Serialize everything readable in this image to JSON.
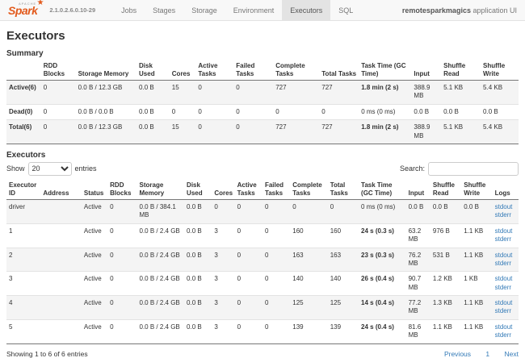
{
  "navbar": {
    "brand": "Spark",
    "brand_sub": "apache",
    "version": "2.1.0.2.6.0.10-29",
    "items": [
      {
        "label": "Jobs",
        "active": false
      },
      {
        "label": "Stages",
        "active": false
      },
      {
        "label": "Storage",
        "active": false
      },
      {
        "label": "Environment",
        "active": false
      },
      {
        "label": "Executors",
        "active": true
      },
      {
        "label": "SQL",
        "active": false
      }
    ],
    "app_name": "remotesparkmagics",
    "app_suffix": " application UI"
  },
  "page": {
    "title": "Executors"
  },
  "summary": {
    "heading": "Summary",
    "headers": [
      "",
      "RDD Blocks",
      "Storage Memory",
      "Disk Used",
      "Cores",
      "Active Tasks",
      "Failed Tasks",
      "Complete Tasks",
      "Total Tasks",
      "Task Time (GC Time)",
      "Input",
      "Shuffle Read",
      "Shuffle Write"
    ],
    "rows": [
      [
        "Active(6)",
        "0",
        "0.0 B / 12.3 GB",
        "0.0 B",
        "15",
        "0",
        "0",
        "727",
        "727",
        "1.8 min (2 s)",
        "388.9 MB",
        "5.1 KB",
        "5.4 KB"
      ],
      [
        "Dead(0)",
        "0",
        "0.0 B / 0.0 B",
        "0.0 B",
        "0",
        "0",
        "0",
        "0",
        "0",
        "0 ms (0 ms)",
        "0.0 B",
        "0.0 B",
        "0.0 B"
      ],
      [
        "Total(6)",
        "0",
        "0.0 B / 12.3 GB",
        "0.0 B",
        "15",
        "0",
        "0",
        "727",
        "727",
        "1.8 min (2 s)",
        "388.9 MB",
        "5.1 KB",
        "5.4 KB"
      ]
    ]
  },
  "executors": {
    "heading": "Executors",
    "show_label": "Show",
    "entries_label": "entries",
    "page_length": "20",
    "search_label": "Search:",
    "search_value": "",
    "headers": [
      "Executor ID",
      "Address",
      "Status",
      "RDD Blocks",
      "Storage Memory",
      "Disk Used",
      "Cores",
      "Active Tasks",
      "Failed Tasks",
      "Complete Tasks",
      "Total Tasks",
      "Task Time (GC Time)",
      "Input",
      "Shuffle Read",
      "Shuffle Write",
      "Logs"
    ],
    "rows": [
      {
        "cells": [
          "driver",
          "",
          "Active",
          "0",
          "0.0 B / 384.1 MB",
          "0.0 B",
          "0",
          "0",
          "0",
          "0",
          "0",
          "0 ms (0 ms)",
          "0.0 B",
          "0.0 B",
          "0.0 B"
        ],
        "logs": [
          "stdout",
          "stderr"
        ]
      },
      {
        "cells": [
          "1",
          "",
          "Active",
          "0",
          "0.0 B / 2.4 GB",
          "0.0 B",
          "3",
          "0",
          "0",
          "160",
          "160",
          "24 s (0.3 s)",
          "63.2 MB",
          "976 B",
          "1.1 KB"
        ],
        "logs": [
          "stdout",
          "stderr"
        ]
      },
      {
        "cells": [
          "2",
          "",
          "Active",
          "0",
          "0.0 B / 2.4 GB",
          "0.0 B",
          "3",
          "0",
          "0",
          "163",
          "163",
          "23 s (0.3 s)",
          "76.2 MB",
          "531 B",
          "1.1 KB"
        ],
        "logs": [
          "stdout",
          "stderr"
        ]
      },
      {
        "cells": [
          "3",
          "",
          "Active",
          "0",
          "0.0 B / 2.4 GB",
          "0.0 B",
          "3",
          "0",
          "0",
          "140",
          "140",
          "26 s (0.4 s)",
          "90.7 MB",
          "1.2 KB",
          "1 KB"
        ],
        "logs": [
          "stdout",
          "stderr"
        ]
      },
      {
        "cells": [
          "4",
          "",
          "Active",
          "0",
          "0.0 B / 2.4 GB",
          "0.0 B",
          "3",
          "0",
          "0",
          "125",
          "125",
          "14 s (0.4 s)",
          "77.2 MB",
          "1.3 KB",
          "1.1 KB"
        ],
        "logs": [
          "stdout",
          "stderr"
        ]
      },
      {
        "cells": [
          "5",
          "",
          "Active",
          "0",
          "0.0 B / 2.4 GB",
          "0.0 B",
          "3",
          "0",
          "0",
          "139",
          "139",
          "24 s (0.4 s)",
          "81.6 MB",
          "1.1 KB",
          "1.1 KB"
        ],
        "logs": [
          "stdout",
          "stderr"
        ]
      }
    ],
    "footer": {
      "info": "Showing 1 to 6 of 6 entries",
      "pagination": [
        "Previous",
        "1",
        "Next"
      ]
    }
  },
  "colors": {
    "accent": "#e25a1c",
    "link": "#337ab7",
    "navbar_bg": "#f8f8f8",
    "active_tab_bg": "#e3e3e3"
  }
}
